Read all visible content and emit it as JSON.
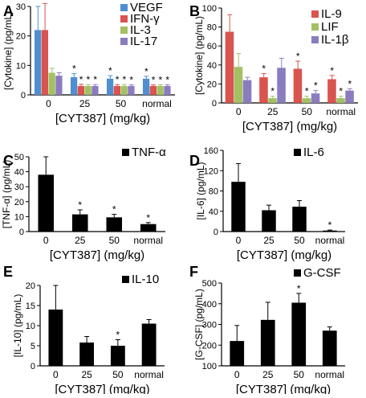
{
  "chart_data": [
    {
      "panel": "A",
      "type": "bar",
      "categories": [
        "0",
        "25",
        "50",
        "normal"
      ],
      "ylabel": "[Cytokine] (pg/mL)",
      "xlabel": "[CYT387] (mg/kg)",
      "ylim": [
        0,
        30
      ],
      "yticks": [
        0,
        10,
        20,
        30
      ],
      "legend": "top-right",
      "series": [
        {
          "name": "VEGF",
          "color": "#4f8fd0",
          "values": [
            22,
            6,
            5.5,
            5.5
          ],
          "errors": [
            8,
            1.2,
            1,
            0.8
          ],
          "stars": [
            false,
            true,
            true,
            true
          ]
        },
        {
          "name": "IFN-γ",
          "color": "#d9534f",
          "values": [
            22,
            3,
            3,
            3
          ],
          "errors": [
            9,
            0.6,
            0.5,
            0.4
          ],
          "stars": [
            false,
            true,
            true,
            true
          ]
        },
        {
          "name": "IL-3",
          "color": "#a3c162",
          "values": [
            7.5,
            3,
            3,
            3
          ],
          "errors": [
            1.5,
            0.5,
            0.5,
            0.4
          ],
          "stars": [
            false,
            true,
            true,
            true
          ]
        },
        {
          "name": "IL-17",
          "color": "#8b7cc0",
          "values": [
            6.5,
            3,
            3,
            3
          ],
          "errors": [
            1,
            0.5,
            0.4,
            0.4
          ],
          "stars": [
            false,
            true,
            true,
            true
          ]
        }
      ]
    },
    {
      "panel": "B",
      "type": "bar",
      "categories": [
        "0",
        "25",
        "50",
        "normal"
      ],
      "ylabel": "[Cytokine] (pg/mL)",
      "xlabel": "[CYT387] (mg/kg)",
      "ylim": [
        0,
        100
      ],
      "yticks": [
        0,
        20,
        40,
        60,
        80,
        100
      ],
      "legend": "top-right",
      "series": [
        {
          "name": "IL-9",
          "color": "#d9534f",
          "values": [
            75,
            27,
            36,
            25
          ],
          "errors": [
            18,
            4,
            8,
            4
          ],
          "stars": [
            false,
            true,
            true,
            true
          ]
        },
        {
          "name": "LIF",
          "color": "#a3c162",
          "values": [
            38,
            5,
            5,
            5
          ],
          "errors": [
            14,
            2,
            2,
            2
          ],
          "stars": [
            false,
            true,
            true,
            true
          ]
        },
        {
          "name": "IL-1β",
          "color": "#8b7cc0",
          "values": [
            24,
            37,
            10,
            13
          ],
          "errors": [
            3,
            10,
            3,
            2
          ],
          "stars": [
            false,
            false,
            true,
            true
          ]
        }
      ]
    },
    {
      "panel": "C",
      "type": "bar",
      "categories": [
        "0",
        "25",
        "50",
        "normal"
      ],
      "ylabel": "[TNF-α] (pg/mL)",
      "xlabel": "[CYT387] (mg/kg)",
      "ylim": [
        0,
        50
      ],
      "yticks": [
        0,
        10,
        20,
        30,
        40,
        50
      ],
      "legend": "top-right",
      "series": [
        {
          "name": "TNF-α",
          "color": "#000000",
          "values": [
            38,
            11.5,
            9.5,
            5
          ],
          "errors": [
            12,
            3,
            2,
            1
          ],
          "stars": [
            false,
            true,
            true,
            true
          ]
        }
      ]
    },
    {
      "panel": "D",
      "type": "bar",
      "categories": [
        "0",
        "25",
        "50",
        "normal"
      ],
      "ylabel": "[IL-6] (pg/mL)",
      "xlabel": "[CYT387] (mg/kg)",
      "ylim": [
        0,
        160
      ],
      "yticks": [
        0,
        40,
        80,
        120,
        160
      ],
      "legend": "top-right",
      "series": [
        {
          "name": "IL-6",
          "color": "#000000",
          "values": [
            98,
            42,
            49,
            2
          ],
          "errors": [
            36,
            10,
            12,
            1
          ],
          "stars": [
            false,
            false,
            false,
            true
          ]
        }
      ]
    },
    {
      "panel": "E",
      "type": "bar",
      "categories": [
        "0",
        "25",
        "50",
        "normal"
      ],
      "ylabel": "[IL-10] (pg/mL)",
      "xlabel": "[CYT387] (mg/kg)",
      "ylim": [
        0,
        20
      ],
      "yticks": [
        0,
        5,
        10,
        15,
        20
      ],
      "legend": "top-right",
      "series": [
        {
          "name": "IL-10",
          "color": "#000000",
          "values": [
            14,
            5.8,
            5,
            10.5
          ],
          "errors": [
            6,
            1.5,
            1.5,
            1
          ],
          "stars": [
            false,
            false,
            true,
            false
          ]
        }
      ]
    },
    {
      "panel": "F",
      "type": "bar",
      "categories": [
        "0",
        "25",
        "50",
        "normal"
      ],
      "ylabel": "[G-CSF] (pg/mL)",
      "xlabel": "[CYT387] (mg/kg)",
      "ylim": [
        100,
        500
      ],
      "yticks": [
        100,
        200,
        300,
        400,
        500
      ],
      "legend": "top-right",
      "series": [
        {
          "name": "G-CSF",
          "color": "#000000",
          "values": [
            220,
            322,
            405,
            270
          ],
          "errors": [
            75,
            85,
            45,
            18
          ],
          "stars": [
            false,
            false,
            true,
            false
          ]
        }
      ]
    }
  ]
}
